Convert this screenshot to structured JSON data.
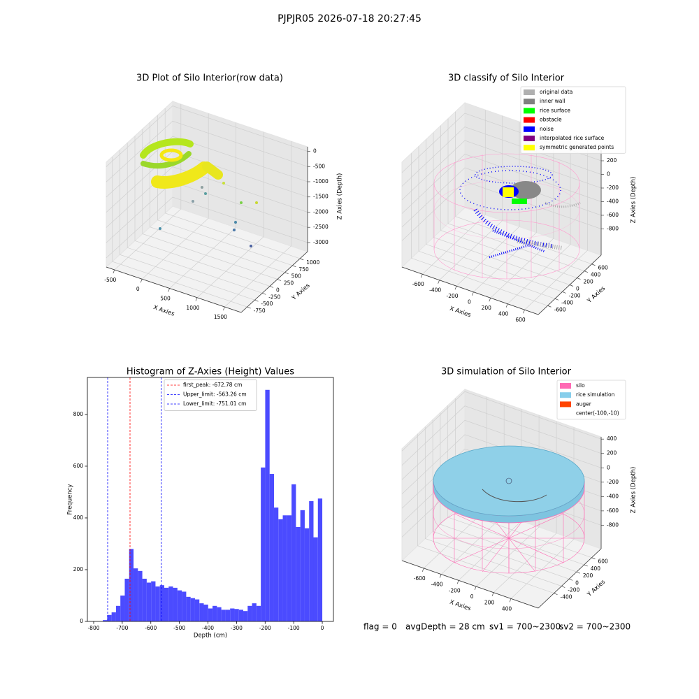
{
  "title": "PJPJR05 2026-07-18 20:27:45",
  "chart_data": [
    {
      "type": "scatter3d",
      "title": "3D Plot of Silo Interior(row data)",
      "xlabel": "X Axies",
      "ylabel": "Y Axies",
      "zlabel": "Z Axies (Depth)",
      "xlim": [
        -650,
        1800
      ],
      "ylim": [
        -950,
        1250
      ],
      "zlim": [
        -3300,
        150
      ],
      "xticks": [
        -500,
        0,
        500,
        1000,
        1500
      ],
      "yticks": [
        -750,
        -500,
        -250,
        0,
        250,
        500,
        750,
        1000
      ],
      "zticks": [
        -3000,
        -2500,
        -2000,
        -1500,
        -1000,
        -500,
        0
      ],
      "grid": true
    },
    {
      "type": "scatter3d",
      "title": "3D classify of Silo Interior",
      "xlabel": "X Axies",
      "ylabel": "Y Axies",
      "zlabel": "Z Axies (Depth)",
      "xlim": [
        -840,
        760
      ],
      "ylim": [
        -857,
        857
      ],
      "zlim": [
        -1185,
        354
      ],
      "xticks": [
        -600,
        -400,
        -200,
        0,
        200,
        400,
        600
      ],
      "yticks": [
        -600,
        -400,
        -200,
        0,
        200,
        400,
        600
      ],
      "zticks": [
        -800,
        -600,
        -400,
        -200,
        0,
        200
      ],
      "grid": true,
      "legend": [
        {
          "name": "original data",
          "color": "#b0b0b0"
        },
        {
          "name": "inner wall",
          "color": "#808080"
        },
        {
          "name": "rice surface",
          "color": "#00ff00"
        },
        {
          "name": "obstacle",
          "color": "#ff0000"
        },
        {
          "name": "noise",
          "color": "#0000ff"
        },
        {
          "name": "interpolated rice surface",
          "color": "#800080"
        },
        {
          "name": "symmetric generated points",
          "color": "#ffff00"
        }
      ]
    },
    {
      "type": "histogram",
      "title": "Histogram of Z-Axies (Height) Values",
      "xlabel": "Depth (cm)",
      "ylabel": "Frequency",
      "color": "#4b4bff",
      "bins": [
        -768,
        -752.64,
        -737.28,
        -721.92,
        -706.56,
        -691.2,
        -675.84,
        -660.48,
        -645.12,
        -629.76,
        -614.4,
        -599.04,
        -583.68,
        -568.32,
        -552.96,
        -537.6,
        -522.24,
        -506.88,
        -491.52,
        -476.16,
        -460.8,
        -445.44,
        -430.08,
        -414.72,
        -399.36,
        -384,
        -368.64,
        -353.28,
        -337.92,
        -322.56,
        -307.2,
        -291.84,
        -276.48,
        -261.12,
        -245.76,
        -230.4,
        -215.04,
        -199.68,
        -184.32,
        -168.96,
        -153.6,
        -138.24,
        -122.88,
        -107.52,
        -92.16,
        -76.8,
        -61.44,
        -46.08,
        -30.72,
        -15.36,
        0
      ],
      "values": [
        5,
        25,
        35,
        60,
        100,
        165,
        280,
        205,
        195,
        165,
        150,
        155,
        135,
        140,
        130,
        135,
        130,
        120,
        115,
        95,
        90,
        85,
        70,
        65,
        50,
        60,
        55,
        45,
        45,
        50,
        48,
        45,
        40,
        60,
        70,
        60,
        595,
        895,
        570,
        440,
        395,
        410,
        410,
        530,
        365,
        430,
        360,
        465,
        325,
        475
      ],
      "xlim": [
        -822,
        39
      ],
      "ylim": [
        0,
        943
      ],
      "xticks": [
        -800,
        -700,
        -600,
        -500,
        -400,
        -300,
        -200,
        -100,
        0
      ],
      "yticks": [
        0,
        200,
        400,
        600,
        800
      ],
      "lines": [
        {
          "name": "first_peak: -672.78 cm",
          "value": -672.78,
          "color": "#ff0000"
        },
        {
          "name": "Upper_limit: -563.26 cm",
          "value": -563.26,
          "color": "#0000ff"
        },
        {
          "name": "Lower_limit: -751.01 cm",
          "value": -751.01,
          "color": "#0000ff"
        }
      ]
    },
    {
      "type": "surface3d",
      "title": "3D simulation of Silo Interior",
      "xlabel": "X Axies",
      "ylabel": "Y Axies",
      "zlabel": "Z Axies (Depth)",
      "xlim": [
        -850,
        712
      ],
      "ylim": [
        -817,
        850
      ],
      "zlim": [
        -1127,
        431
      ],
      "xticks": [
        -600,
        -400,
        -200,
        0,
        200,
        400
      ],
      "yticks": [
        -400,
        -200,
        0,
        200,
        400,
        600
      ],
      "zticks": [
        -800,
        -600,
        -400,
        -200,
        0,
        200,
        400
      ],
      "grid": true,
      "legend": [
        {
          "name": "silo",
          "color": "#ff69b4"
        },
        {
          "name": "rice simulation",
          "color": "#87ceeb"
        },
        {
          "name": "auger",
          "color": "#ff4500"
        },
        {
          "name": "center(-100,-10)"
        }
      ]
    }
  ],
  "footer": [
    "flag = 0",
    "avgDepth = 28 cm",
    "sv1 = 700~2300",
    "sv2 = 700~2300"
  ]
}
